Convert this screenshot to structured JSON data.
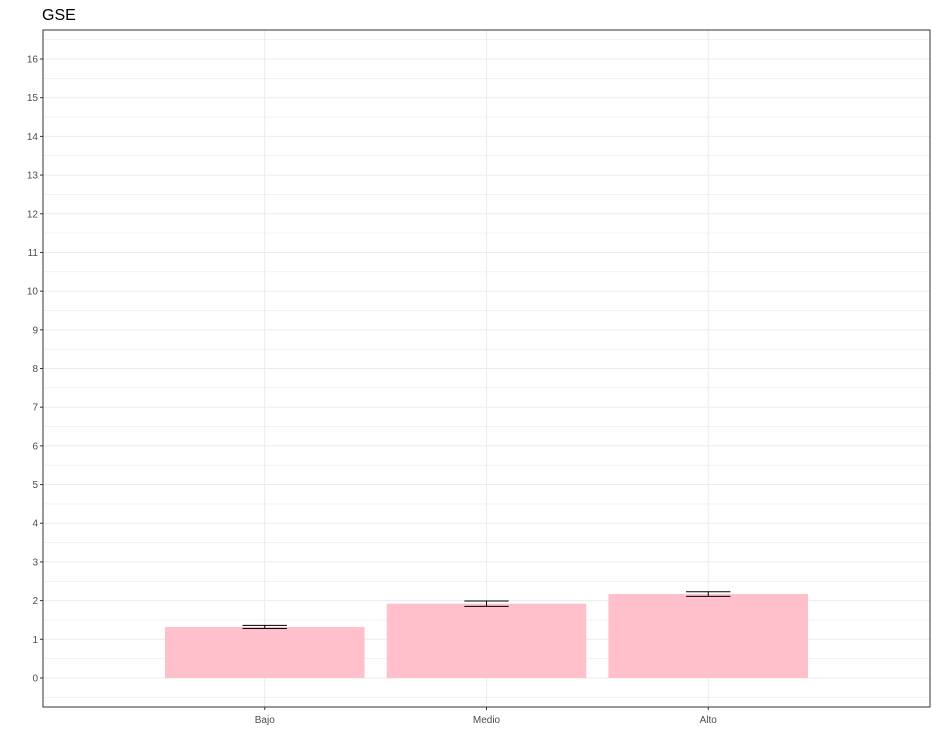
{
  "chart_data": {
    "type": "bar",
    "title": "GSE",
    "xlabel": "",
    "ylabel": "",
    "categories": [
      "Bajo",
      "Medio",
      "Alto"
    ],
    "values": [
      1.32,
      1.92,
      2.17
    ],
    "error_bars": [
      {
        "low": 1.28,
        "high": 1.36
      },
      {
        "low": 1.85,
        "high": 1.99
      },
      {
        "low": 2.11,
        "high": 2.23
      }
    ],
    "ylim": [
      -0.75,
      16.75
    ],
    "yticks": [
      0,
      1,
      2,
      3,
      4,
      5,
      6,
      7,
      8,
      9,
      10,
      11,
      12,
      13,
      14,
      15,
      16
    ],
    "grid": true,
    "legend": "none",
    "colors": {
      "bar": "#ffc0cb",
      "error_bar": "#000000",
      "grid": "#ebebeb",
      "panel_border": "#333333"
    }
  }
}
